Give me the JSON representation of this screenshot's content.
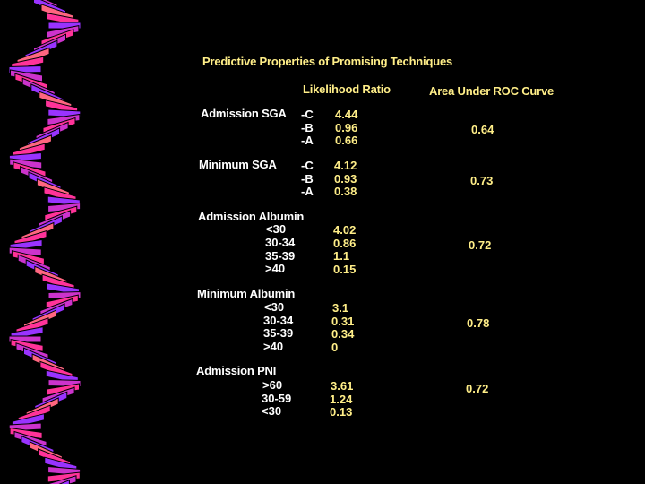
{
  "title": "Predictive Properties of Promising Techniques",
  "columns": {
    "likelihood_ratio": "Likelihood Ratio",
    "auc": "Area Under ROC Curve"
  },
  "rows": [
    {
      "label": "Admission SGA",
      "subs": [
        "-C",
        "-B",
        "-A"
      ],
      "lr": [
        "4.44",
        "0.96",
        "0.66"
      ],
      "auc": "0.64"
    },
    {
      "label": "Minimum SGA",
      "subs": [
        "-C",
        "-B",
        "-A"
      ],
      "lr": [
        "4.12",
        "0.93",
        "0.38"
      ],
      "auc": "0.73"
    },
    {
      "label": "Admission Albumin",
      "subs": [
        "<30",
        "30-34",
        "35-39",
        ">40"
      ],
      "lr": [
        "4.02",
        "0.86",
        "1.1",
        "0.15"
      ],
      "auc": "0.72"
    },
    {
      "label": "Minimum Albumin",
      "subs": [
        "<30",
        "30-34",
        "35-39",
        ">40"
      ],
      "lr": [
        "3.1",
        "0.31",
        "0.34",
        "0"
      ],
      "auc": "0.78"
    },
    {
      "label": "Admission PNI",
      "subs": [
        ">60",
        "30-59",
        "<30"
      ],
      "lr": [
        "3.61",
        "1.24",
        "0.13"
      ],
      "auc": "0.72"
    }
  ],
  "colors": {
    "background": "#000000",
    "heading_text": "#ffee88",
    "label_text": "#ffffff",
    "ribbon_pink": "#ff3399",
    "ribbon_magenta": "#cc33cc",
    "ribbon_purple": "#9933ff",
    "ribbon_salmon": "#ff6680"
  }
}
